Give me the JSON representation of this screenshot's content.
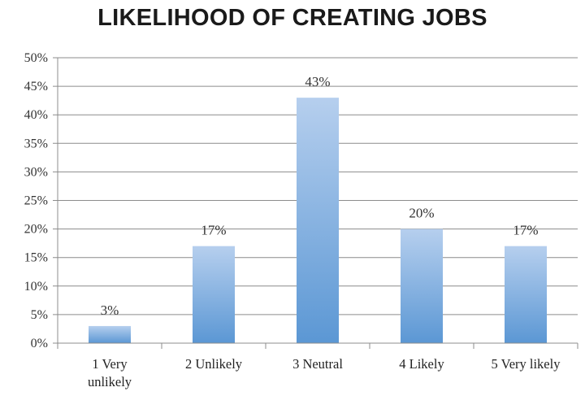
{
  "chart_data": {
    "type": "bar",
    "title": "LIKELIHOOD OF CREATING JOBS",
    "xlabel": "",
    "ylabel": "",
    "categories": [
      [
        "1 Very",
        "unlikely"
      ],
      [
        "2 Unlikely"
      ],
      [
        "3 Neutral"
      ],
      [
        "4 Likely"
      ],
      [
        "5 Very  likely"
      ]
    ],
    "values": [
      3,
      17,
      43,
      20,
      17
    ],
    "data_labels": [
      "3%",
      "17%",
      "43%",
      "20%",
      "17%"
    ],
    "ylim": [
      0,
      50
    ],
    "yticks": [
      0,
      5,
      10,
      15,
      20,
      25,
      30,
      35,
      40,
      45,
      50
    ],
    "ytick_labels": [
      "0%",
      "5%",
      "10%",
      "15%",
      "20%",
      "25%",
      "30%",
      "35%",
      "40%",
      "45%",
      "50%"
    ],
    "grid": true,
    "legend": false,
    "colors": {
      "bar_top": "#b6cfee",
      "bar_bottom": "#5b97d4",
      "grid": "#8c8c8c"
    }
  }
}
